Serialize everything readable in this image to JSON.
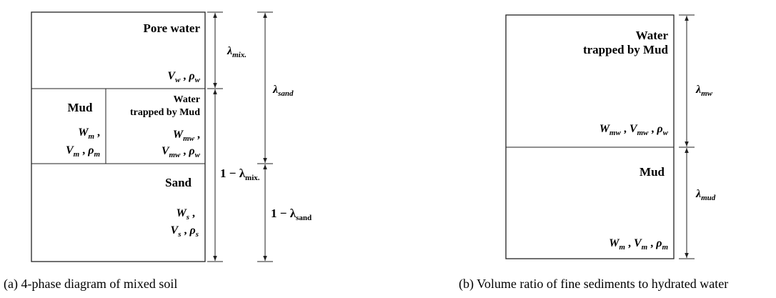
{
  "diagram_a": {
    "caption": "(a) 4-phase diagram of mixed soil",
    "pore_water": {
      "title": "Pore water",
      "formula": [
        {
          "main": "V",
          "sub": "w"
        },
        " , ",
        {
          "main": "ρ",
          "sub": "w"
        }
      ]
    },
    "mud": {
      "title": "Mud",
      "formula_1": [
        {
          "main": "W",
          "sub": "m"
        },
        " ,"
      ],
      "formula_2": [
        {
          "main": "V",
          "sub": "m"
        },
        " , ",
        {
          "main": "ρ",
          "sub": "m"
        }
      ]
    },
    "trapped_water": {
      "title": [
        "Water",
        "trapped by Mud"
      ],
      "formula_1": [
        {
          "main": "W",
          "sub": "mw"
        },
        " ,"
      ],
      "formula_2": [
        {
          "main": "V",
          "sub": "mw"
        },
        " , ",
        {
          "main": "ρ",
          "sub": "w"
        }
      ]
    },
    "sand": {
      "title": "Sand",
      "formula_1": [
        {
          "main": "W",
          "sub": "s"
        },
        " ,"
      ],
      "formula_2": [
        {
          "main": "V",
          "sub": "s"
        },
        " , ",
        {
          "main": "ρ",
          "sub": "s"
        }
      ]
    },
    "dimensions": [
      [
        {
          "main": "λ",
          "sub": "mix."
        }
      ],
      [
        "1 − ",
        {
          "main": "λ",
          "sub": "mix."
        }
      ],
      [
        {
          "main": "λ",
          "sub": "sand"
        }
      ],
      [
        "1 − ",
        {
          "main": "λ",
          "sub": "sand"
        }
      ]
    ]
  },
  "diagram_b": {
    "caption": "(b) Volume ratio of fine sediments to hydrated water",
    "trapped_water": {
      "title": [
        "Water",
        "trapped by Mud"
      ],
      "formula": [
        {
          "main": "W",
          "sub": "mw"
        },
        " , ",
        {
          "main": "V",
          "sub": "mw"
        },
        " , ",
        {
          "main": "ρ",
          "sub": "w"
        }
      ]
    },
    "mud": {
      "title": "Mud",
      "formula": [
        {
          "main": "W",
          "sub": "m"
        },
        " , ",
        {
          "main": "V",
          "sub": "m"
        },
        " , ",
        {
          "main": "ρ",
          "sub": "m"
        }
      ]
    },
    "dimensions": [
      [
        {
          "main": "λ",
          "sub": "mw"
        }
      ],
      [
        {
          "main": "λ",
          "sub": "mud"
        }
      ]
    ]
  }
}
